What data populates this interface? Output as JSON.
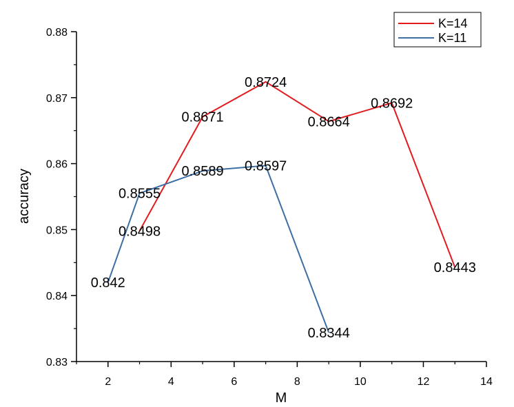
{
  "chart_data": {
    "type": "line",
    "title": "",
    "xlabel": "M",
    "ylabel": "accuracy",
    "xlim": [
      1,
      14
    ],
    "ylim": [
      0.83,
      0.88
    ],
    "x_ticks": [
      2,
      4,
      6,
      8,
      10,
      12,
      14
    ],
    "x_tick_labels": [
      "2",
      "4",
      "6",
      "8",
      "10",
      "12",
      "14"
    ],
    "y_ticks": [
      0.83,
      0.84,
      0.85,
      0.86,
      0.87,
      0.88
    ],
    "y_tick_labels": [
      "0.83",
      "0.84",
      "0.85",
      "0.86",
      "0.87",
      "0.88"
    ],
    "grid": false,
    "legend_position": "top-right",
    "series": [
      {
        "name": "K=14",
        "color": "#e3191c",
        "x": [
          3,
          5,
          7,
          9,
          11,
          13
        ],
        "values": [
          0.8498,
          0.8671,
          0.8724,
          0.8664,
          0.8692,
          0.8443
        ],
        "labels": [
          "0.8498",
          "0.8671",
          "0.8724",
          "0.8664",
          "0.8692",
          "0.8443"
        ]
      },
      {
        "name": "K=11",
        "color": "#3a6ea5",
        "x": [
          2,
          3,
          5,
          7,
          9
        ],
        "values": [
          0.842,
          0.8555,
          0.8589,
          0.8597,
          0.8344
        ],
        "labels": [
          "0.842",
          "0.8555",
          "0.8589",
          "0.8597",
          "0.8344"
        ]
      }
    ]
  }
}
